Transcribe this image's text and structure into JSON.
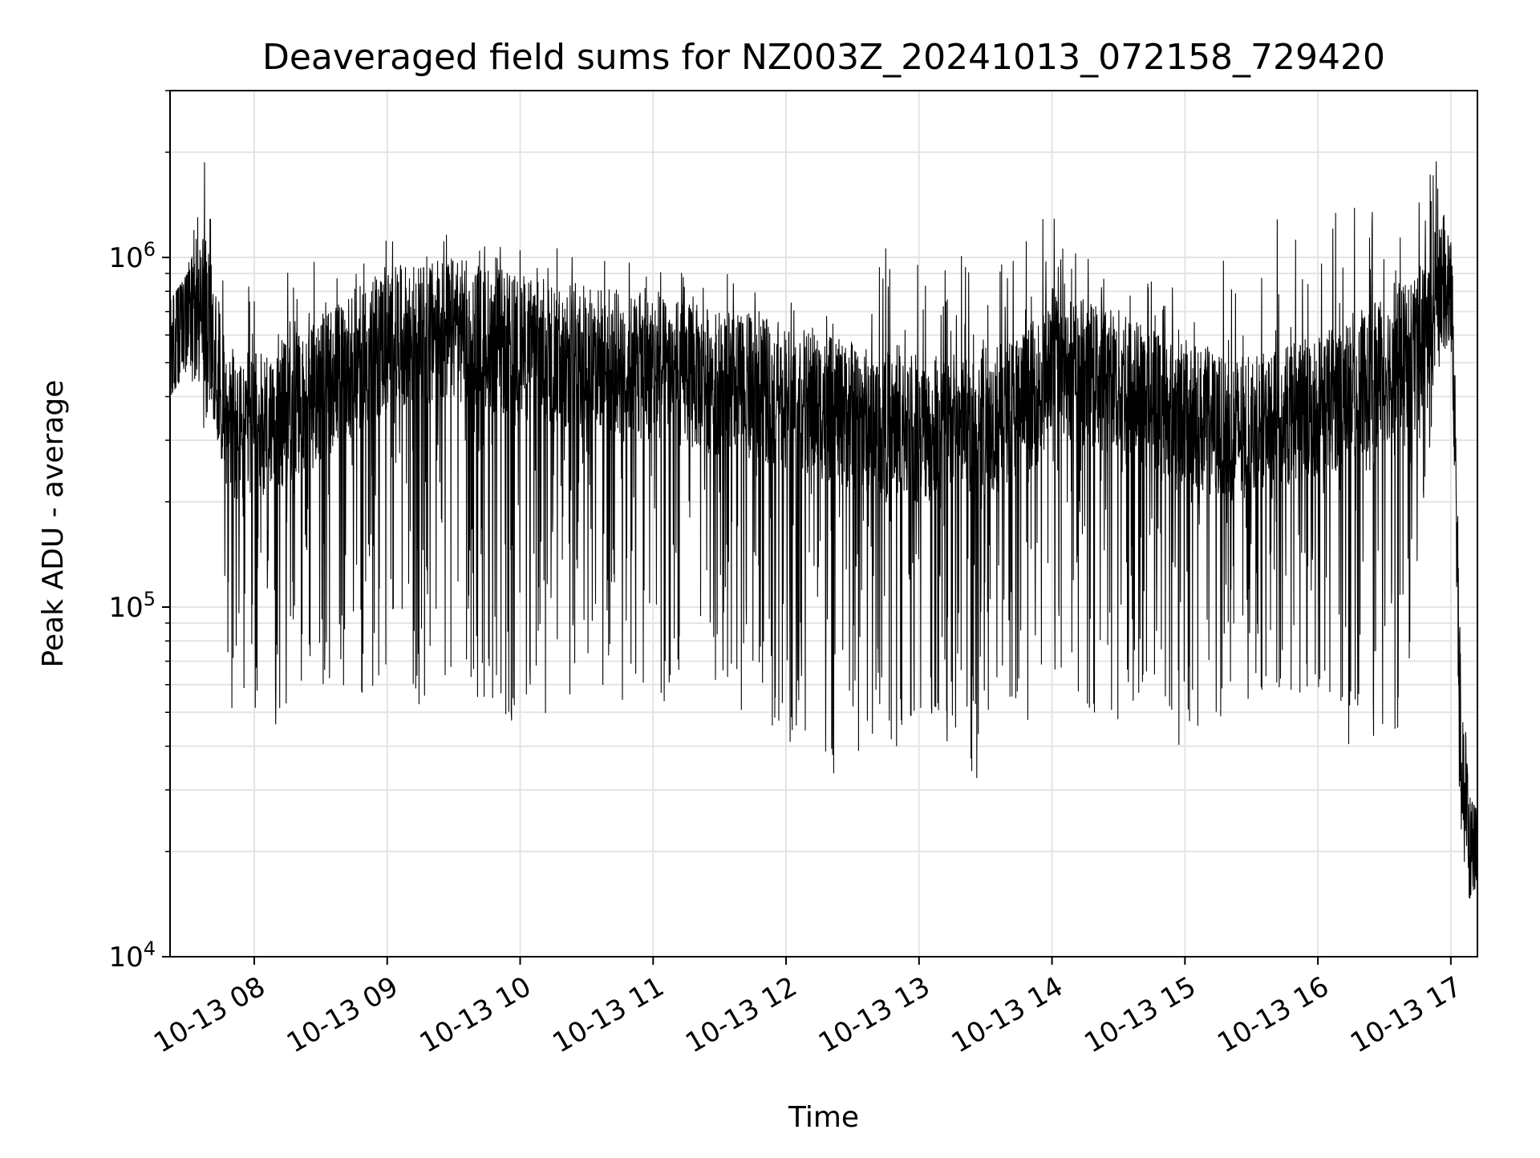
{
  "chart_data": {
    "type": "line",
    "title": "Deaveraged field sums for NZ003Z_20241013_072158_729420",
    "xlabel": "Time",
    "ylabel": "Peak ADU - average",
    "yscale": "log",
    "ylim": [
      10000,
      3000000
    ],
    "xlim": [
      "2024-10-13 07:22",
      "2024-10-13 17:12"
    ],
    "grid": true,
    "legend": "none",
    "x_ticks": [
      {
        "value": "2024-10-13 08:00",
        "label": "10-13 08"
      },
      {
        "value": "2024-10-13 09:00",
        "label": "10-13 09"
      },
      {
        "value": "2024-10-13 10:00",
        "label": "10-13 10"
      },
      {
        "value": "2024-10-13 11:00",
        "label": "10-13 11"
      },
      {
        "value": "2024-10-13 12:00",
        "label": "10-13 12"
      },
      {
        "value": "2024-10-13 13:00",
        "label": "10-13 13"
      },
      {
        "value": "2024-10-13 14:00",
        "label": "10-13 14"
      },
      {
        "value": "2024-10-13 15:00",
        "label": "10-13 15"
      },
      {
        "value": "2024-10-13 16:00",
        "label": "10-13 16"
      },
      {
        "value": "2024-10-13 17:00",
        "label": "10-13 17"
      }
    ],
    "y_ticks": [
      {
        "value": 10000,
        "base": "10",
        "exp": "4"
      },
      {
        "value": 100000,
        "base": "10",
        "exp": "5"
      },
      {
        "value": 1000000,
        "base": "10",
        "exp": "6"
      }
    ],
    "series": [
      {
        "color": "#000000",
        "x": [
          "2024-10-13 07:22",
          "2024-10-13 07:30",
          "2024-10-13 07:37",
          "2024-10-13 07:43",
          "2024-10-13 07:48",
          "2024-10-13 07:52",
          "2024-10-13 07:56",
          "2024-10-13 08:00",
          "2024-10-13 08:10",
          "2024-10-13 08:20",
          "2024-10-13 08:30",
          "2024-10-13 08:40",
          "2024-10-13 08:50",
          "2024-10-13 09:00",
          "2024-10-13 09:20",
          "2024-10-13 09:30",
          "2024-10-13 09:40",
          "2024-10-13 10:00",
          "2024-10-13 10:30",
          "2024-10-13 11:00",
          "2024-10-13 11:30",
          "2024-10-13 12:00",
          "2024-10-13 12:30",
          "2024-10-13 13:00",
          "2024-10-13 13:30",
          "2024-10-13 13:55",
          "2024-10-13 14:00",
          "2024-10-13 14:10",
          "2024-10-13 14:30",
          "2024-10-13 15:00",
          "2024-10-13 15:20",
          "2024-10-13 15:40",
          "2024-10-13 16:00",
          "2024-10-13 16:20",
          "2024-10-13 16:40",
          "2024-10-13 16:50",
          "2024-10-13 16:55",
          "2024-10-13 17:00",
          "2024-10-13 17:02",
          "2024-10-13 17:04",
          "2024-10-13 17:08",
          "2024-10-13 17:12"
        ],
        "center": [
          550000,
          680000,
          750000,
          500000,
          350000,
          300000,
          330000,
          330000,
          350000,
          380000,
          420000,
          480000,
          520000,
          580000,
          600000,
          620000,
          600000,
          550000,
          520000,
          480000,
          440000,
          400000,
          350000,
          320000,
          340000,
          420000,
          520000,
          480000,
          440000,
          360000,
          320000,
          330000,
          380000,
          440000,
          520000,
          640000,
          820000,
          800000,
          300000,
          50000,
          23000,
          22000
        ],
        "upper": [
          750000,
          900000,
          2400000,
          1600000,
          1000000,
          900000,
          800000,
          900000,
          900000,
          950000,
          1000000,
          1100000,
          1300000,
          1200000,
          1250000,
          1150000,
          1100000,
          1100000,
          1050000,
          950000,
          900000,
          850000,
          700000,
          1700000,
          800000,
          1500000,
          1400000,
          1100000,
          900000,
          850000,
          1000000,
          1400000,
          1400000,
          1400000,
          1500000,
          2000000,
          2300000,
          1500000,
          900000,
          100000,
          29000,
          26000
        ],
        "lower": [
          400000,
          480000,
          320000,
          350000,
          60000,
          38000,
          50000,
          45000,
          45000,
          55000,
          60000,
          60000,
          55000,
          60000,
          50000,
          60000,
          50000,
          45000,
          50000,
          50000,
          55000,
          40000,
          30000,
          45000,
          30000,
          50000,
          60000,
          55000,
          40000,
          38000,
          50000,
          60000,
          50000,
          35000,
          40000,
          270000,
          500000,
          600000,
          200000,
          20000,
          13000,
          17000
        ]
      }
    ]
  }
}
